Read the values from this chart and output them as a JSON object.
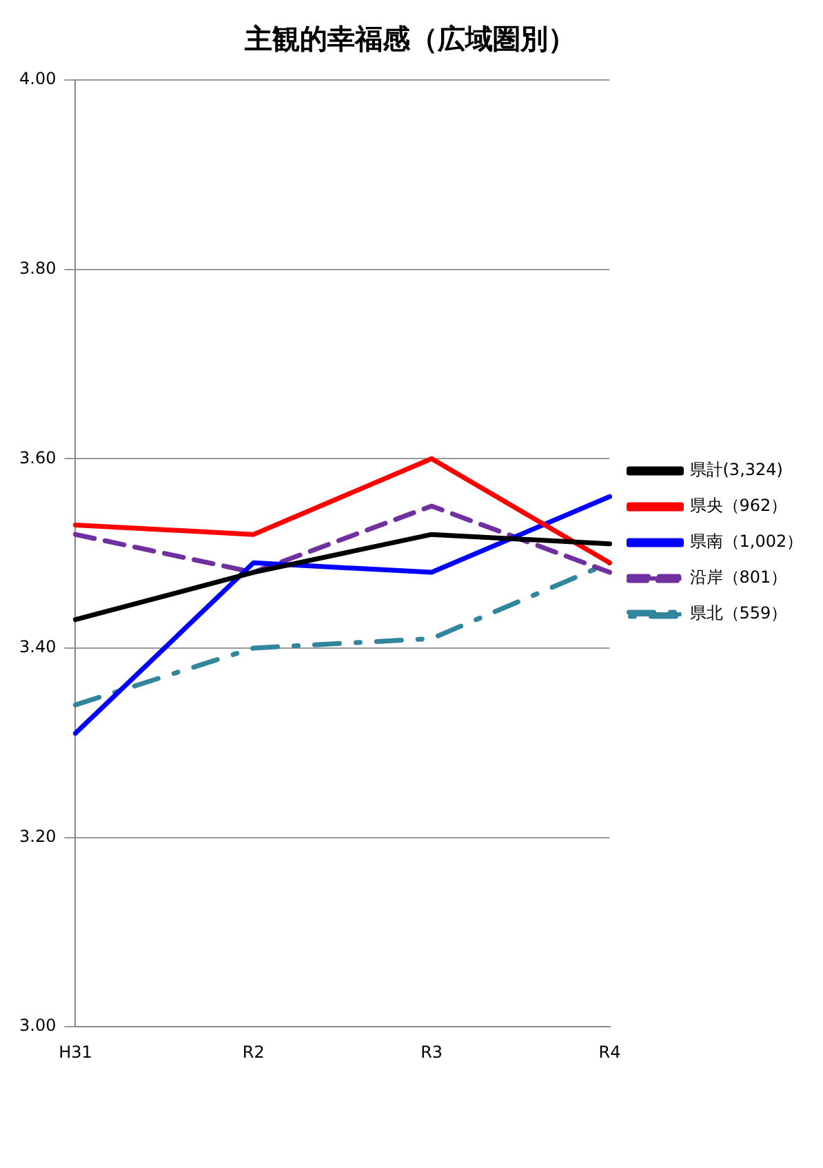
{
  "chart_data": {
    "type": "line",
    "title": "主観的幸福感（広域圏別）",
    "categories": [
      "H31",
      "R2",
      "R3",
      "R4"
    ],
    "series": [
      {
        "name": "県計(3,324)",
        "color": "#000000",
        "line_style": "solid",
        "values": [
          3.43,
          3.48,
          3.52,
          3.51
        ]
      },
      {
        "name": "県央（962）",
        "color": "#ff0000",
        "line_style": "solid",
        "values": [
          3.53,
          3.52,
          3.6,
          3.49
        ]
      },
      {
        "name": "県南（1,002）",
        "color": "#0000ff",
        "line_style": "solid",
        "values": [
          3.31,
          3.49,
          3.48,
          3.56
        ]
      },
      {
        "name": "沿岸（801）",
        "color": "#7030a0",
        "line_style": "dashed",
        "values": [
          3.52,
          3.48,
          3.55,
          3.48
        ]
      },
      {
        "name": "県北（559）",
        "color": "#31859c",
        "line_style": "dashdot",
        "values": [
          3.34,
          3.4,
          3.41,
          3.49
        ]
      }
    ],
    "ylim": [
      3.0,
      4.0
    ],
    "yticks": [
      {
        "value": 3.0,
        "label": "3.00"
      },
      {
        "value": 3.2,
        "label": "3.20"
      },
      {
        "value": 3.4,
        "label": "3.40"
      },
      {
        "value": 3.6,
        "label": "3.60"
      },
      {
        "value": 3.8,
        "label": "3.80"
      },
      {
        "value": 4.0,
        "label": "4.00"
      }
    ],
    "grid": "y",
    "legend": "right",
    "marker": "none"
  }
}
